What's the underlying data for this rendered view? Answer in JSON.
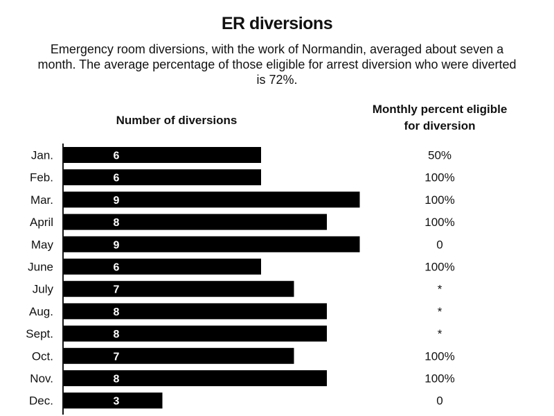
{
  "chart_data": {
    "type": "bar",
    "orientation": "horizontal",
    "title": "ER diversions",
    "subtitle": "Emergency room diversions, with the work of Normandin, averaged about seven a month. The average percentage of those eligible for arrest diversion who were diverted is 72%.",
    "bar_column_header": "Number of diversions",
    "percent_column_header_line1": "Monthly percent eligible",
    "percent_column_header_line2": "for diversion",
    "categories": [
      "Jan.",
      "Feb.",
      "Mar.",
      "April",
      "May",
      "June",
      "July",
      "Aug.",
      "Sept.",
      "Oct.",
      "Nov.",
      "Dec."
    ],
    "series": [
      {
        "values": [
          6,
          6,
          9,
          8,
          9,
          6,
          7,
          8,
          8,
          7,
          8,
          3
        ]
      }
    ],
    "percent_eligible": [
      "50%",
      "100%",
      "100%",
      "100%",
      "0",
      "100%",
      "*",
      "*",
      "*",
      "100%",
      "100%",
      "0"
    ],
    "xlim": [
      0,
      9
    ],
    "grid": false,
    "legend": "none",
    "bar_color": "#000000",
    "bar_label_color": "#ffffff"
  }
}
